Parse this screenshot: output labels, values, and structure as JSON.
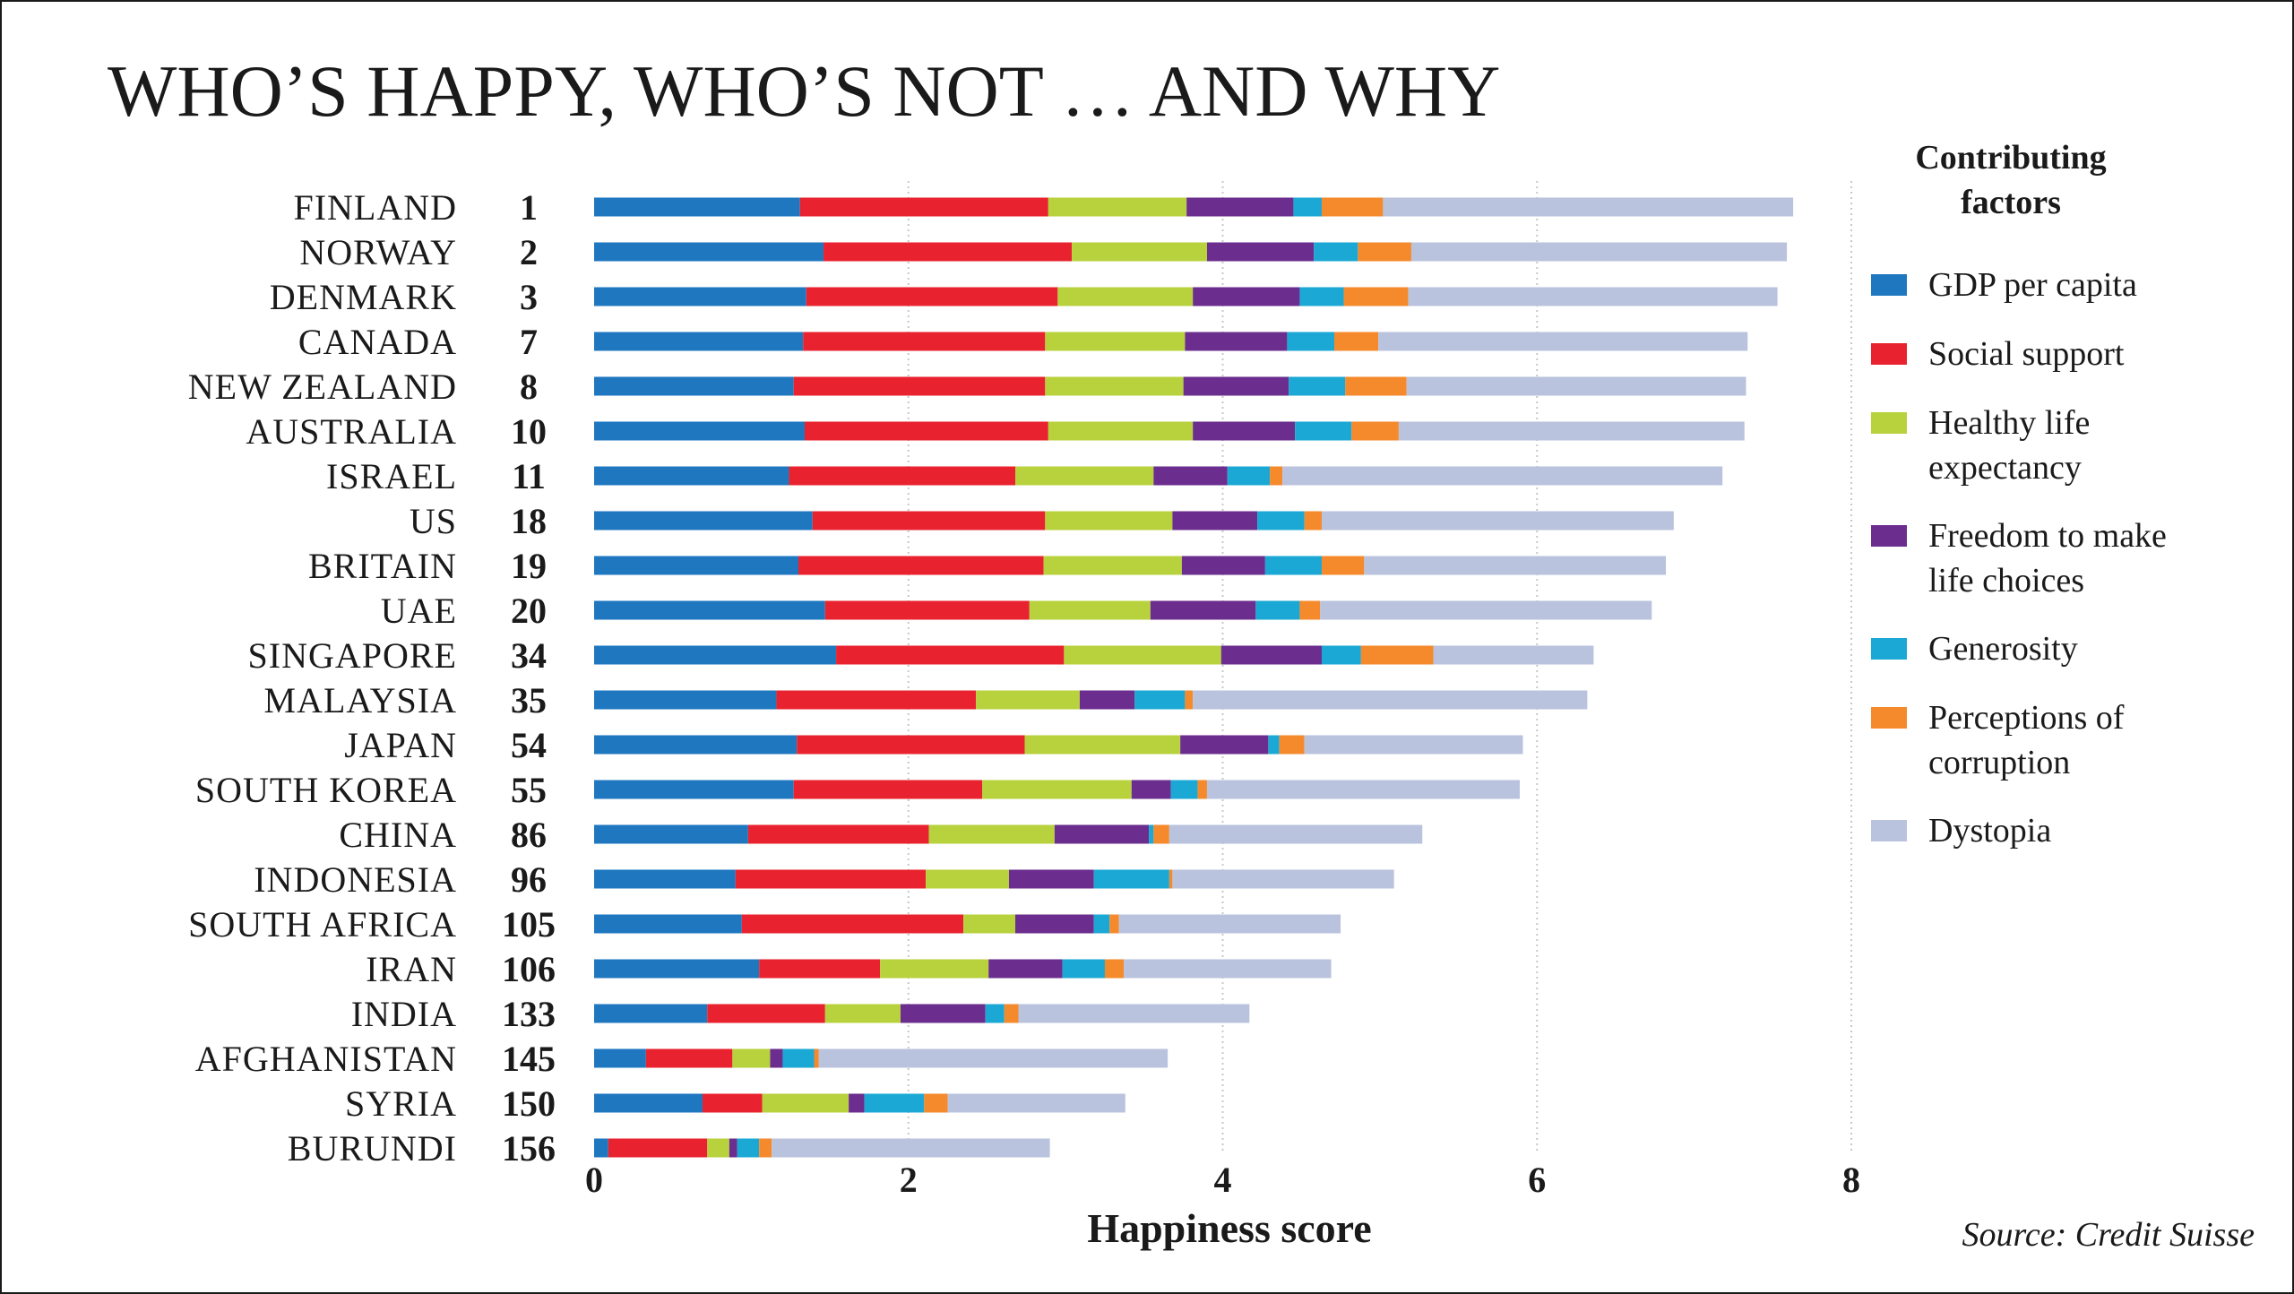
{
  "chart_data": {
    "type": "bar",
    "orientation": "horizontal",
    "stacked": true,
    "title": "WHO’S HAPPY, WHO’S NOT … AND WHY",
    "xlabel": "Happiness score",
    "ylabel": "",
    "xlim": [
      0,
      8
    ],
    "xticks": [
      "0",
      "2",
      "4",
      "6",
      "8"
    ],
    "grid": true,
    "source": "Source: Credit Suisse",
    "legend_title": "Contributing factors",
    "legend_position": "right",
    "categories": [
      "FINLAND",
      "NORWAY",
      "DENMARK",
      "CANADA",
      "NEW ZEALAND",
      "AUSTRALIA",
      "ISRAEL",
      "US",
      "BRITAIN",
      "UAE",
      "SINGAPORE",
      "MALAYSIA",
      "JAPAN",
      "SOUTH KOREA",
      "CHINA",
      "INDONESIA",
      "SOUTH AFRICA",
      "IRAN",
      "INDIA",
      "AFGHANISTAN",
      "SYRIA",
      "BURUNDI"
    ],
    "ranks": [
      "1",
      "2",
      "3",
      "7",
      "8",
      "10",
      "11",
      "18",
      "19",
      "20",
      "34",
      "35",
      "54",
      "55",
      "86",
      "96",
      "105",
      "106",
      "133",
      "145",
      "150",
      "156"
    ],
    "series": [
      {
        "name": "GDP per capita",
        "color": "#1f77c0",
        "values": [
          1.31,
          1.46,
          1.35,
          1.33,
          1.27,
          1.34,
          1.24,
          1.39,
          1.3,
          1.47,
          1.54,
          1.16,
          1.29,
          1.27,
          0.98,
          0.9,
          0.94,
          1.05,
          0.72,
          0.33,
          0.69,
          0.09
        ]
      },
      {
        "name": "Social support",
        "color": "#e8232f",
        "values": [
          1.58,
          1.58,
          1.6,
          1.54,
          1.6,
          1.55,
          1.44,
          1.48,
          1.56,
          1.3,
          1.45,
          1.27,
          1.45,
          1.2,
          1.15,
          1.21,
          1.41,
          0.77,
          0.75,
          0.55,
          0.38,
          0.63
        ]
      },
      {
        "name": "Healthy life expectancy",
        "color": "#b8d23e",
        "values": [
          0.88,
          0.86,
          0.86,
          0.89,
          0.88,
          0.92,
          0.88,
          0.81,
          0.88,
          0.77,
          1.0,
          0.66,
          0.99,
          0.95,
          0.8,
          0.53,
          0.33,
          0.69,
          0.48,
          0.24,
          0.55,
          0.14
        ]
      },
      {
        "name": "Freedom to make life choices",
        "color": "#6b2d8e",
        "values": [
          0.68,
          0.68,
          0.68,
          0.65,
          0.67,
          0.65,
          0.47,
          0.54,
          0.53,
          0.67,
          0.64,
          0.35,
          0.56,
          0.25,
          0.6,
          0.54,
          0.5,
          0.47,
          0.54,
          0.08,
          0.1,
          0.05
        ]
      },
      {
        "name": "Generosity",
        "color": "#1ba8d4",
        "values": [
          0.18,
          0.28,
          0.28,
          0.3,
          0.36,
          0.36,
          0.27,
          0.3,
          0.36,
          0.28,
          0.25,
          0.32,
          0.07,
          0.17,
          0.03,
          0.48,
          0.1,
          0.27,
          0.12,
          0.2,
          0.38,
          0.14
        ]
      },
      {
        "name": "Perceptions of corruption",
        "color": "#f48a2c",
        "values": [
          0.39,
          0.34,
          0.41,
          0.28,
          0.39,
          0.3,
          0.08,
          0.11,
          0.27,
          0.13,
          0.46,
          0.05,
          0.16,
          0.06,
          0.1,
          0.02,
          0.06,
          0.12,
          0.09,
          0.03,
          0.15,
          0.08
        ]
      },
      {
        "name": "Dystopia",
        "color": "#bac3de",
        "values": [
          2.61,
          2.39,
          2.35,
          2.35,
          2.16,
          2.2,
          2.8,
          2.24,
          1.92,
          2.11,
          1.02,
          2.51,
          1.39,
          1.99,
          1.61,
          1.41,
          1.41,
          1.32,
          1.47,
          2.22,
          1.13,
          1.77
        ]
      }
    ]
  }
}
